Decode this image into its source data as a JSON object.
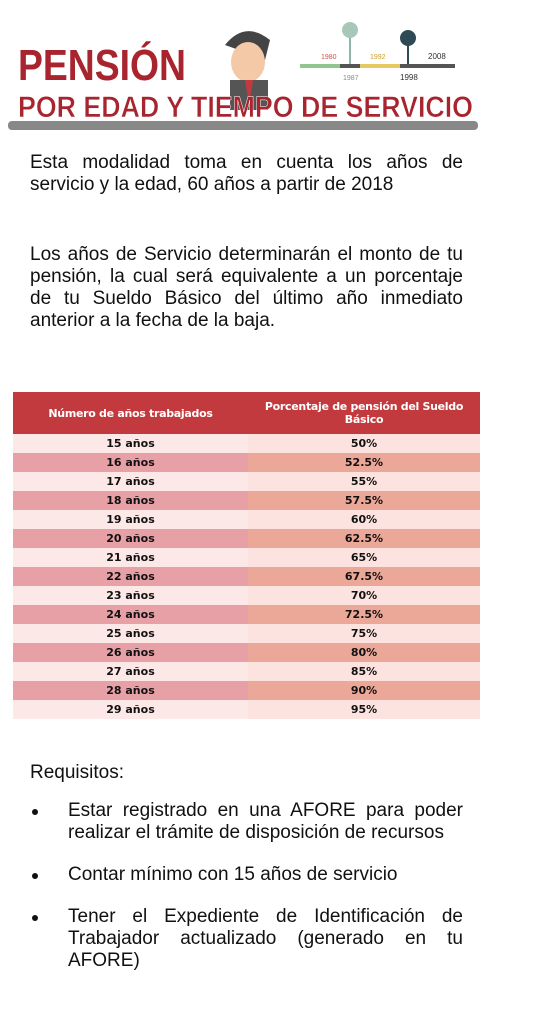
{
  "header": {
    "title": "PENSIÓN",
    "subtitle": "POR EDAD Y TIEMPO DE SERVICIO",
    "timeline": [
      "1980",
      "1992",
      "2008",
      "1987",
      "1998"
    ]
  },
  "paragraphs": [
    "Esta modalidad toma en cuenta los años de servicio y la edad, 60 años a partir de 2018",
    "Los años de Servicio determinarán el monto de tu pensión, la cual será equivalente a un porcentaje de tu Sueldo Básico del último año inmediato anterior a la fecha de la baja."
  ],
  "table": {
    "header": [
      "Número de años trabajados",
      "Porcentaje de pensión del Sueldo Básico"
    ],
    "rows": [
      [
        "15 años",
        "50%"
      ],
      [
        "16 años",
        "52.5%"
      ],
      [
        "17 años",
        "55%"
      ],
      [
        "18 años",
        "57.5%"
      ],
      [
        "19 años",
        "60%"
      ],
      [
        "20 años",
        "62.5%"
      ],
      [
        "21 años",
        "65%"
      ],
      [
        "22 años",
        "67.5%"
      ],
      [
        "23 años",
        "70%"
      ],
      [
        "24 años",
        "72.5%"
      ],
      [
        "25 años",
        "75%"
      ],
      [
        "26 años",
        "80%"
      ],
      [
        "27 años",
        "85%"
      ],
      [
        "28 años",
        "90%"
      ],
      [
        "29 años",
        "95%"
      ]
    ]
  },
  "requirements": {
    "title": "Requisitos:",
    "items": [
      "Estar registrado en una AFORE para poder realizar el trámite de disposición de recursos",
      "Contar mínimo con 15 años de servicio",
      "Tener el Expediente de Identificación de Trabajador actualizado (generado en tu AFORE)"
    ]
  }
}
